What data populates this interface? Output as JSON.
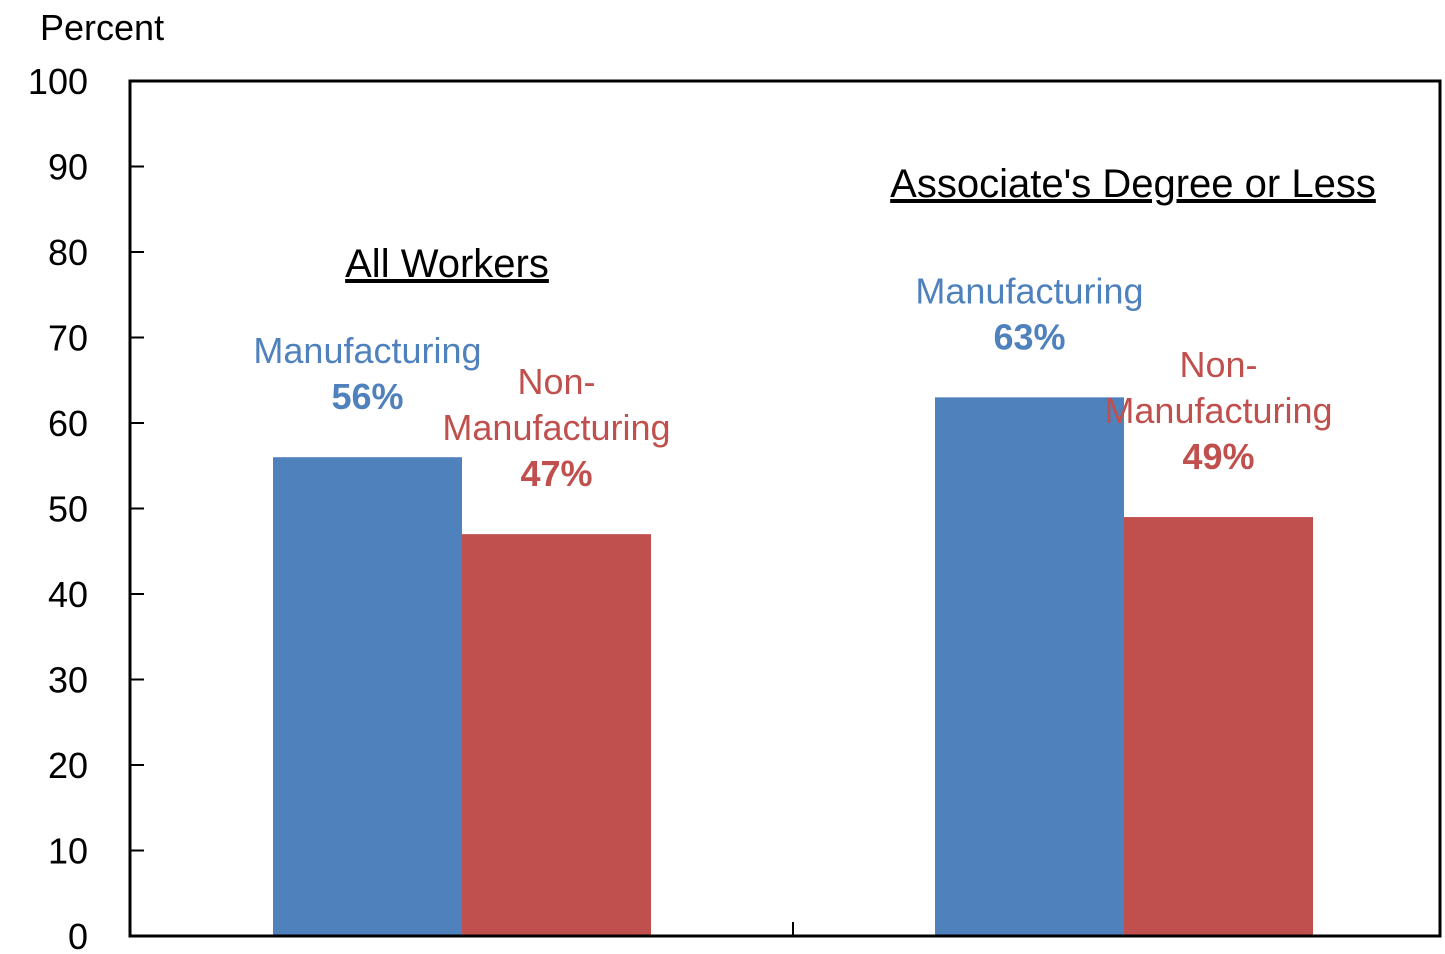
{
  "chart_data": {
    "type": "bar",
    "ylabel": "Percent",
    "ylim": [
      0,
      100
    ],
    "yticks": [
      0,
      10,
      20,
      30,
      40,
      50,
      60,
      70,
      80,
      90,
      100
    ],
    "grid": false,
    "legend": "none",
    "categories": [
      "All Workers",
      "Associate's Degree or Less"
    ],
    "series": [
      {
        "name": "Manufacturing",
        "label_lines": [
          "Manufacturing"
        ],
        "color": "#4f81bd",
        "values": [
          56,
          63
        ],
        "value_labels": [
          "56%",
          "63%"
        ]
      },
      {
        "name": "Non-Manufacturing",
        "label_lines": [
          "Non-",
          "Manufacturing"
        ],
        "color": "#c0504d",
        "values": [
          47,
          49
        ],
        "value_labels": [
          "47%",
          "49%"
        ]
      }
    ]
  }
}
